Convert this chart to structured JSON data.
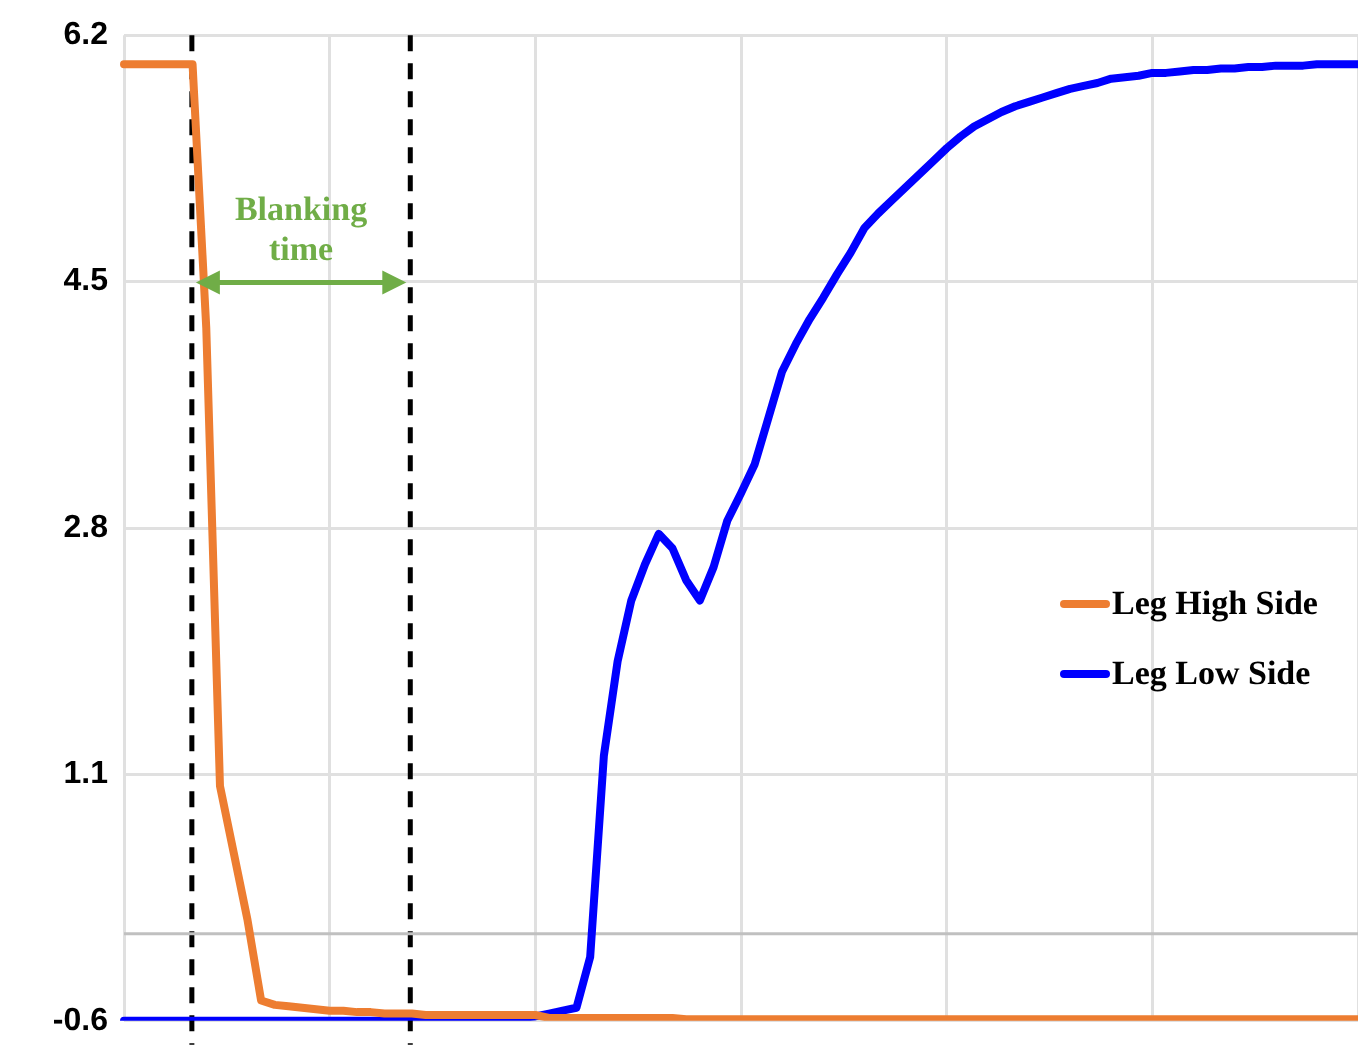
{
  "chart_data": {
    "type": "line",
    "categories": [
      null,
      null,
      null,
      null,
      null,
      null,
      null,
      null,
      null,
      null,
      null,
      null,
      null,
      null,
      null,
      null,
      null,
      null,
      null,
      null,
      null,
      null,
      null,
      null,
      null,
      null,
      null,
      null,
      null,
      null,
      null,
      null,
      null,
      null,
      null,
      null,
      null,
      null,
      null,
      null,
      null,
      null,
      null,
      null,
      null,
      null,
      null,
      null,
      null,
      null,
      null,
      null,
      null,
      null,
      null,
      null,
      null,
      null,
      null,
      null,
      null,
      null,
      null,
      null,
      null,
      null,
      null,
      null,
      null,
      null,
      null,
      null,
      null,
      null,
      null,
      null,
      null,
      null,
      null,
      null,
      null,
      null,
      null,
      null,
      null,
      null,
      null,
      null,
      null,
      null,
      null
    ],
    "ylim": [
      -0.6,
      6.2
    ],
    "yticks": [
      -0.6,
      1.1,
      2.8,
      4.5,
      6.2
    ],
    "tick_labels": "y",
    "grid": true,
    "legend": "right",
    "marker": "none",
    "line_style": "solid",
    "series": [
      {
        "name": "Leg High Side",
        "color": "#ed7d31",
        "values": [
          6.0,
          6.0,
          6.0,
          6.0,
          6.0,
          6.0,
          4.18,
          1.02,
          0.56,
          0.1,
          -0.46,
          -0.49,
          -0.5,
          -0.51,
          -0.52,
          -0.53,
          -0.53,
          -0.54,
          -0.54,
          -0.55,
          -0.55,
          -0.55,
          -0.56,
          -0.56,
          -0.56,
          -0.56,
          -0.56,
          -0.56,
          -0.56,
          -0.56,
          -0.56,
          -0.58,
          -0.58,
          -0.58,
          -0.58,
          -0.58,
          -0.58,
          -0.58,
          -0.58,
          -0.58,
          -0.58,
          -0.59,
          -0.59,
          -0.59,
          -0.59,
          -0.59,
          -0.59,
          -0.59,
          -0.59,
          -0.59,
          -0.59,
          -0.59,
          -0.59,
          -0.59,
          -0.59,
          -0.59,
          -0.59,
          -0.59,
          -0.59,
          -0.59,
          -0.59,
          -0.59,
          -0.59,
          -0.59,
          -0.59,
          -0.59,
          -0.59,
          -0.59,
          -0.59,
          -0.59,
          -0.59,
          -0.59,
          -0.59,
          -0.59,
          -0.59,
          -0.59,
          -0.59,
          -0.59,
          -0.59,
          -0.59,
          -0.59,
          -0.59,
          -0.59,
          -0.59,
          -0.59,
          -0.59,
          -0.59,
          -0.59,
          -0.59,
          -0.59,
          -0.59
        ]
      },
      {
        "name": "Leg Low Side",
        "color": "#0000ff",
        "values": [
          -0.6,
          -0.6,
          -0.6,
          -0.6,
          -0.6,
          -0.6,
          -0.6,
          -0.6,
          -0.6,
          -0.6,
          -0.6,
          -0.6,
          -0.6,
          -0.6,
          -0.6,
          -0.6,
          -0.6,
          -0.6,
          -0.6,
          -0.6,
          -0.6,
          -0.6,
          -0.6,
          -0.6,
          -0.6,
          -0.6,
          -0.6,
          -0.6,
          -0.59,
          -0.58,
          -0.57,
          -0.55,
          -0.53,
          -0.51,
          -0.16,
          1.23,
          1.88,
          2.3,
          2.55,
          2.76,
          2.66,
          2.44,
          2.3,
          2.53,
          2.85,
          3.04,
          3.24,
          3.56,
          3.88,
          4.07,
          4.24,
          4.39,
          4.55,
          4.7,
          4.87,
          4.97,
          5.06,
          5.15,
          5.24,
          5.33,
          5.42,
          5.5,
          5.57,
          5.62,
          5.67,
          5.71,
          5.74,
          5.77,
          5.8,
          5.83,
          5.85,
          5.87,
          5.9,
          5.91,
          5.92,
          5.94,
          5.94,
          5.95,
          5.96,
          5.96,
          5.97,
          5.97,
          5.98,
          5.98,
          5.99,
          5.99,
          5.99,
          6.0,
          6.0,
          6.0,
          6.0
        ]
      }
    ],
    "ref_lines": [
      {
        "axis": "y",
        "value": 0,
        "color": "#c0c0c0",
        "line_style": "solid"
      }
    ],
    "annotations": [
      "Blanking time"
    ]
  }
}
